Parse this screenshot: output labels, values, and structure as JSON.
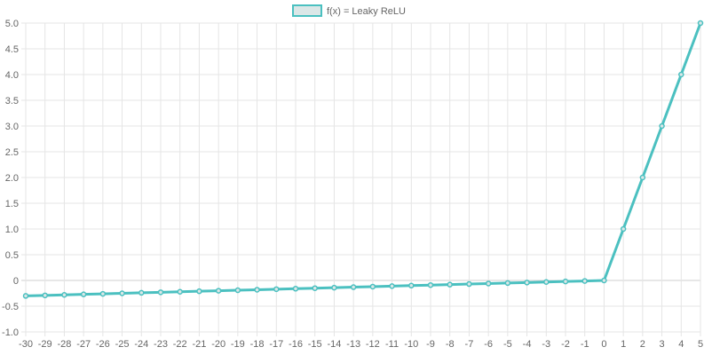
{
  "chart_data": {
    "type": "line",
    "x": [
      -30,
      -29,
      -28,
      -27,
      -26,
      -25,
      -24,
      -23,
      -22,
      -21,
      -20,
      -19,
      -18,
      -17,
      -16,
      -15,
      -14,
      -13,
      -12,
      -11,
      -10,
      -9,
      -8,
      -7,
      -6,
      -5,
      -4,
      -3,
      -2,
      -1,
      0,
      1,
      2,
      3,
      4,
      5
    ],
    "series": [
      {
        "name": "f(x) = Leaky ReLU",
        "color": "#4bc0c0",
        "fill_color": "#dbe7e7",
        "values": [
          -0.3,
          -0.29,
          -0.28,
          -0.27,
          -0.26,
          -0.25,
          -0.24,
          -0.23,
          -0.22,
          -0.21,
          -0.2,
          -0.19,
          -0.18,
          -0.17,
          -0.16,
          -0.15,
          -0.14,
          -0.13,
          -0.12,
          -0.11,
          -0.1,
          -0.09,
          -0.08,
          -0.07,
          -0.06,
          -0.05,
          -0.04,
          -0.03,
          -0.02,
          -0.01,
          0,
          1,
          2,
          3,
          4,
          5
        ]
      }
    ],
    "y_ticks": [
      "5.0",
      "4.5",
      "4.0",
      "3.5",
      "3.0",
      "2.5",
      "2.0",
      "1.5",
      "1.0",
      "0.5",
      "0",
      "-0.5",
      "-1.0"
    ],
    "ylim": [
      -1.0,
      5.0
    ],
    "xlim": [
      -30,
      5
    ],
    "grid": true,
    "legend_position": "top"
  }
}
